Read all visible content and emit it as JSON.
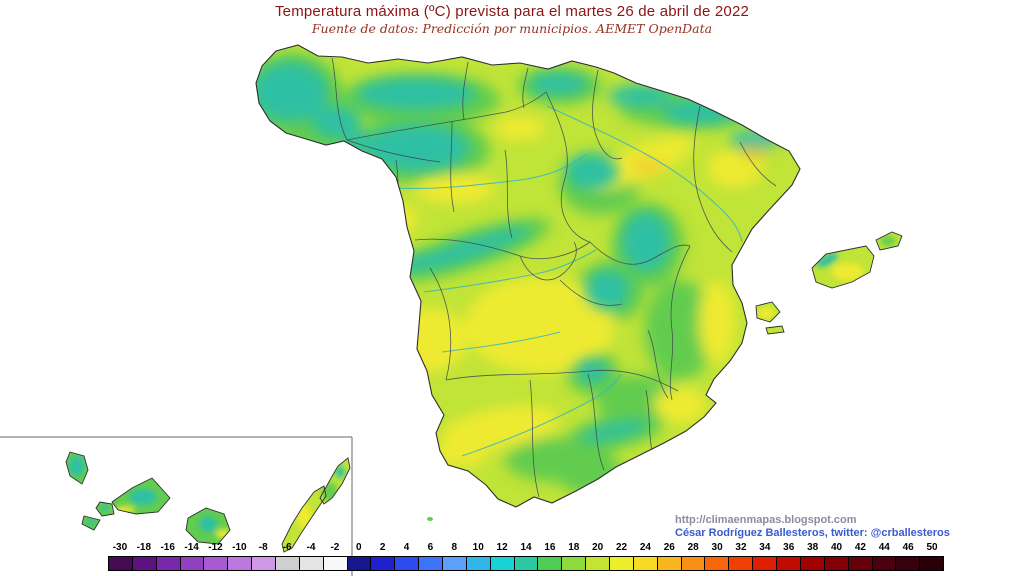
{
  "header": {
    "title": "Temperatura máxima (ºC) prevista para el martes 26 de abril de 2022",
    "subtitle": "Fuente de datos: Predicción por municipios. AEMET OpenData"
  },
  "credits": {
    "line1": "http://climaenmapas.blogspot.com",
    "line2": "César Rodríguez Ballesteros, twitter: @crballesteros"
  },
  "colorbar": {
    "unit": "ºC",
    "labels": [
      "-30",
      "-18",
      "-16",
      "-14",
      "-12",
      "-10",
      "-8",
      "-6",
      "-4",
      "-2",
      "0",
      "2",
      "4",
      "6",
      "8",
      "10",
      "12",
      "14",
      "16",
      "18",
      "20",
      "22",
      "24",
      "26",
      "28",
      "30",
      "32",
      "34",
      "36",
      "38",
      "40",
      "42",
      "44",
      "46",
      "50"
    ],
    "cell_colors": [
      "#440a54",
      "#5c1282",
      "#7a28aa",
      "#9340c0",
      "#a95ad0",
      "#bc78dc",
      "#cf97e6",
      "#cfcfcf",
      "#e4e4e4",
      "#f8f8f8",
      "#16168e",
      "#2020cc",
      "#2c4cf0",
      "#3c74f8",
      "#5ca0fa",
      "#30b6e8",
      "#18d2da",
      "#2cc8a4",
      "#4ecc54",
      "#8cda3c",
      "#c4e434",
      "#ecee2c",
      "#f8da22",
      "#f8b61e",
      "#f89016",
      "#f8660c",
      "#f04004",
      "#de2000",
      "#c00c00",
      "#a00000",
      "#820006",
      "#66000a",
      "#4c000e",
      "#38000c",
      "#2a0008"
    ]
  },
  "map": {
    "palette": {
      "base": "#c0e438",
      "green": "#62cc50",
      "yellow": "#eeea30",
      "teal": "#2ec0a4",
      "cyan": "#38b4c0",
      "orange": "#f2b42e"
    }
  }
}
